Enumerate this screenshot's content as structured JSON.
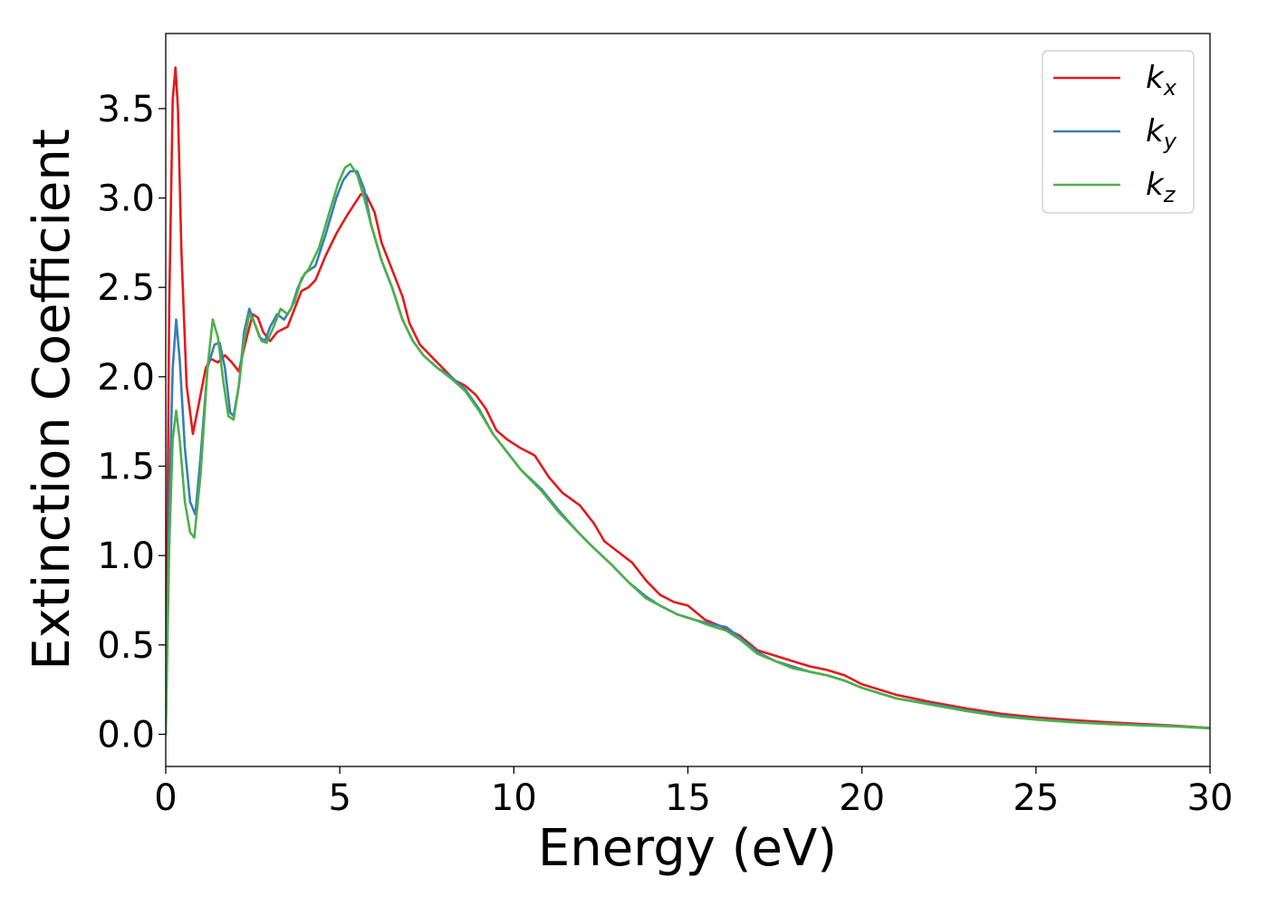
{
  "chart_data": {
    "type": "line",
    "xlabel": "Energy (eV)",
    "ylabel": "Extinction Coefficient",
    "xlim": [
      0,
      30
    ],
    "ylim": [
      -0.18,
      3.92
    ],
    "xticks": [
      0,
      5,
      10,
      15,
      20,
      25,
      30
    ],
    "yticks": [
      0.0,
      0.5,
      1.0,
      1.5,
      2.0,
      2.5,
      3.0,
      3.5
    ],
    "xtick_labels": [
      "0",
      "5",
      "10",
      "15",
      "20",
      "25",
      "30"
    ],
    "ytick_labels": [
      "0.0",
      "0.5",
      "1.0",
      "1.5",
      "2.0",
      "2.5",
      "3.0",
      "3.5"
    ],
    "legend_position": "top-right",
    "grid": false,
    "series": [
      {
        "name": "k_x",
        "base": "k",
        "sub": "x",
        "color": "#e41a1c",
        "points": [
          [
            0,
            0.0
          ],
          [
            0.1,
            2.4
          ],
          [
            0.2,
            3.55
          ],
          [
            0.28,
            3.73
          ],
          [
            0.35,
            3.5
          ],
          [
            0.45,
            2.7
          ],
          [
            0.6,
            1.95
          ],
          [
            0.78,
            1.68
          ],
          [
            0.95,
            1.85
          ],
          [
            1.15,
            2.05
          ],
          [
            1.3,
            2.1
          ],
          [
            1.5,
            2.08
          ],
          [
            1.7,
            2.12
          ],
          [
            1.9,
            2.08
          ],
          [
            2.1,
            2.03
          ],
          [
            2.3,
            2.2
          ],
          [
            2.5,
            2.35
          ],
          [
            2.65,
            2.33
          ],
          [
            2.8,
            2.25
          ],
          [
            3.0,
            2.2
          ],
          [
            3.2,
            2.25
          ],
          [
            3.5,
            2.28
          ],
          [
            3.7,
            2.38
          ],
          [
            3.9,
            2.48
          ],
          [
            4.1,
            2.5
          ],
          [
            4.3,
            2.54
          ],
          [
            4.6,
            2.68
          ],
          [
            4.9,
            2.8
          ],
          [
            5.2,
            2.9
          ],
          [
            5.4,
            2.96
          ],
          [
            5.6,
            3.02
          ],
          [
            5.75,
            3.02
          ],
          [
            6.0,
            2.92
          ],
          [
            6.2,
            2.75
          ],
          [
            6.5,
            2.6
          ],
          [
            6.8,
            2.45
          ],
          [
            7.0,
            2.3
          ],
          [
            7.3,
            2.18
          ],
          [
            7.6,
            2.12
          ],
          [
            7.9,
            2.06
          ],
          [
            8.3,
            1.98
          ],
          [
            8.6,
            1.95
          ],
          [
            8.9,
            1.9
          ],
          [
            9.2,
            1.82
          ],
          [
            9.5,
            1.7
          ],
          [
            9.8,
            1.65
          ],
          [
            10.2,
            1.6
          ],
          [
            10.6,
            1.56
          ],
          [
            11.0,
            1.44
          ],
          [
            11.4,
            1.35
          ],
          [
            11.9,
            1.28
          ],
          [
            12.3,
            1.18
          ],
          [
            12.6,
            1.08
          ],
          [
            13.0,
            1.02
          ],
          [
            13.4,
            0.96
          ],
          [
            13.8,
            0.86
          ],
          [
            14.2,
            0.78
          ],
          [
            14.6,
            0.74
          ],
          [
            15.0,
            0.72
          ],
          [
            15.5,
            0.64
          ],
          [
            16.0,
            0.6
          ],
          [
            16.5,
            0.55
          ],
          [
            17.0,
            0.47
          ],
          [
            17.5,
            0.44
          ],
          [
            18.0,
            0.41
          ],
          [
            18.5,
            0.38
          ],
          [
            19.0,
            0.36
          ],
          [
            19.5,
            0.33
          ],
          [
            20.0,
            0.28
          ],
          [
            20.5,
            0.25
          ],
          [
            21.0,
            0.22
          ],
          [
            22.0,
            0.18
          ],
          [
            23.0,
            0.145
          ],
          [
            24.0,
            0.115
          ],
          [
            25.0,
            0.095
          ],
          [
            26.0,
            0.08
          ],
          [
            27.0,
            0.068
          ],
          [
            28.0,
            0.058
          ],
          [
            29.0,
            0.048
          ],
          [
            30.0,
            0.035
          ]
        ]
      },
      {
        "name": "k_y",
        "base": "k",
        "sub": "y",
        "color": "#377eb8",
        "points": [
          [
            0,
            0.0
          ],
          [
            0.1,
            1.3
          ],
          [
            0.2,
            2.05
          ],
          [
            0.3,
            2.32
          ],
          [
            0.4,
            2.1
          ],
          [
            0.55,
            1.6
          ],
          [
            0.7,
            1.3
          ],
          [
            0.85,
            1.23
          ],
          [
            1.0,
            1.55
          ],
          [
            1.2,
            2.05
          ],
          [
            1.4,
            2.18
          ],
          [
            1.55,
            2.19
          ],
          [
            1.7,
            2.05
          ],
          [
            1.85,
            1.8
          ],
          [
            1.95,
            1.78
          ],
          [
            2.1,
            1.95
          ],
          [
            2.25,
            2.25
          ],
          [
            2.4,
            2.38
          ],
          [
            2.55,
            2.3
          ],
          [
            2.7,
            2.22
          ],
          [
            2.85,
            2.2
          ],
          [
            3.0,
            2.28
          ],
          [
            3.2,
            2.35
          ],
          [
            3.4,
            2.32
          ],
          [
            3.6,
            2.38
          ],
          [
            3.8,
            2.5
          ],
          [
            4.0,
            2.58
          ],
          [
            4.3,
            2.62
          ],
          [
            4.6,
            2.8
          ],
          [
            4.9,
            3.0
          ],
          [
            5.1,
            3.1
          ],
          [
            5.3,
            3.15
          ],
          [
            5.5,
            3.15
          ],
          [
            5.7,
            3.05
          ],
          [
            5.9,
            2.85
          ],
          [
            6.2,
            2.65
          ],
          [
            6.5,
            2.5
          ],
          [
            6.8,
            2.32
          ],
          [
            7.1,
            2.2
          ],
          [
            7.4,
            2.12
          ],
          [
            7.8,
            2.05
          ],
          [
            8.2,
            2.0
          ],
          [
            8.6,
            1.93
          ],
          [
            9.0,
            1.82
          ],
          [
            9.4,
            1.68
          ],
          [
            9.8,
            1.58
          ],
          [
            10.2,
            1.48
          ],
          [
            10.8,
            1.37
          ],
          [
            11.3,
            1.25
          ],
          [
            11.8,
            1.14
          ],
          [
            12.2,
            1.06
          ],
          [
            12.8,
            0.95
          ],
          [
            13.3,
            0.85
          ],
          [
            13.8,
            0.77
          ],
          [
            14.2,
            0.72
          ],
          [
            14.7,
            0.67
          ],
          [
            15.2,
            0.64
          ],
          [
            15.6,
            0.62
          ],
          [
            16.1,
            0.6
          ],
          [
            16.5,
            0.54
          ],
          [
            17.0,
            0.46
          ],
          [
            17.5,
            0.41
          ],
          [
            18.0,
            0.38
          ],
          [
            18.5,
            0.35
          ],
          [
            19.0,
            0.33
          ],
          [
            19.5,
            0.3
          ],
          [
            20.0,
            0.26
          ],
          [
            20.5,
            0.23
          ],
          [
            21.0,
            0.2
          ],
          [
            22.0,
            0.17
          ],
          [
            23.0,
            0.135
          ],
          [
            24.0,
            0.105
          ],
          [
            25.0,
            0.085
          ],
          [
            26.0,
            0.07
          ],
          [
            27.0,
            0.06
          ],
          [
            28.0,
            0.052
          ],
          [
            29.0,
            0.045
          ],
          [
            30.0,
            0.035
          ]
        ]
      },
      {
        "name": "k_z",
        "base": "k",
        "sub": "z",
        "color": "#4daf4a",
        "points": [
          [
            0,
            0.0
          ],
          [
            0.1,
            1.05
          ],
          [
            0.2,
            1.65
          ],
          [
            0.3,
            1.81
          ],
          [
            0.4,
            1.65
          ],
          [
            0.55,
            1.3
          ],
          [
            0.7,
            1.13
          ],
          [
            0.82,
            1.1
          ],
          [
            1.0,
            1.45
          ],
          [
            1.2,
            2.05
          ],
          [
            1.35,
            2.32
          ],
          [
            1.5,
            2.22
          ],
          [
            1.65,
            1.98
          ],
          [
            1.8,
            1.78
          ],
          [
            1.95,
            1.76
          ],
          [
            2.1,
            1.95
          ],
          [
            2.25,
            2.2
          ],
          [
            2.4,
            2.35
          ],
          [
            2.55,
            2.3
          ],
          [
            2.75,
            2.2
          ],
          [
            2.9,
            2.19
          ],
          [
            3.1,
            2.28
          ],
          [
            3.3,
            2.38
          ],
          [
            3.5,
            2.35
          ],
          [
            3.7,
            2.42
          ],
          [
            3.9,
            2.55
          ],
          [
            4.1,
            2.6
          ],
          [
            4.4,
            2.72
          ],
          [
            4.7,
            2.92
          ],
          [
            4.95,
            3.08
          ],
          [
            5.15,
            3.17
          ],
          [
            5.3,
            3.19
          ],
          [
            5.5,
            3.13
          ],
          [
            5.7,
            3.0
          ],
          [
            5.9,
            2.85
          ],
          [
            6.2,
            2.65
          ],
          [
            6.5,
            2.5
          ],
          [
            6.8,
            2.32
          ],
          [
            7.1,
            2.2
          ],
          [
            7.4,
            2.12
          ],
          [
            7.8,
            2.05
          ],
          [
            8.2,
            1.99
          ],
          [
            8.6,
            1.92
          ],
          [
            9.0,
            1.81
          ],
          [
            9.4,
            1.68
          ],
          [
            9.8,
            1.58
          ],
          [
            10.2,
            1.48
          ],
          [
            10.8,
            1.36
          ],
          [
            11.3,
            1.24
          ],
          [
            11.8,
            1.14
          ],
          [
            12.2,
            1.06
          ],
          [
            12.8,
            0.95
          ],
          [
            13.3,
            0.85
          ],
          [
            13.8,
            0.76
          ],
          [
            14.2,
            0.72
          ],
          [
            14.7,
            0.67
          ],
          [
            15.2,
            0.64
          ],
          [
            15.6,
            0.61
          ],
          [
            16.1,
            0.58
          ],
          [
            16.5,
            0.53
          ],
          [
            17.0,
            0.45
          ],
          [
            17.5,
            0.41
          ],
          [
            18.0,
            0.37
          ],
          [
            18.5,
            0.35
          ],
          [
            19.0,
            0.33
          ],
          [
            19.5,
            0.3
          ],
          [
            20.0,
            0.26
          ],
          [
            20.5,
            0.23
          ],
          [
            21.0,
            0.2
          ],
          [
            22.0,
            0.165
          ],
          [
            23.0,
            0.13
          ],
          [
            24.0,
            0.1
          ],
          [
            25.0,
            0.082
          ],
          [
            26.0,
            0.068
          ],
          [
            27.0,
            0.058
          ],
          [
            28.0,
            0.05
          ],
          [
            29.0,
            0.044
          ],
          [
            30.0,
            0.033
          ]
        ]
      }
    ]
  }
}
